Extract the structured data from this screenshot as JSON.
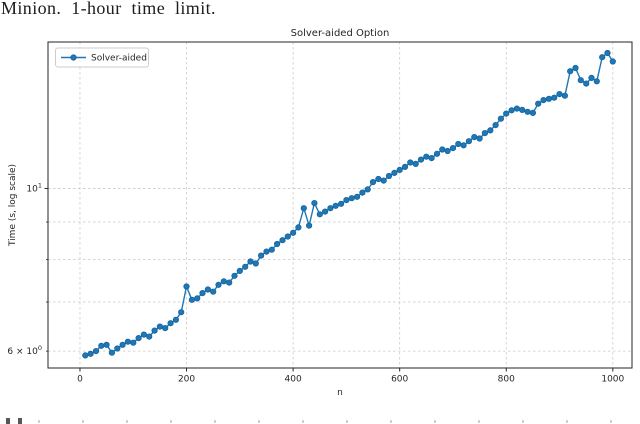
{
  "paper": {
    "caption_fragment": "Minion. 1-hour time limit."
  },
  "chart_data": {
    "type": "line",
    "title": "Solver-aided Option",
    "xlabel": "n",
    "ylabel": "Time (s, log scale)",
    "yscale": "log",
    "grid": true,
    "legend_position": "upper-left",
    "line_color": "#1f77b4",
    "marker_edge_color": "#1664a0",
    "grid_color": "#c9c9c9",
    "spine_color": "#262626",
    "xlim": [
      -60,
      1036
    ],
    "ylim": [
      5.69,
      15.84
    ],
    "x_ticks": [
      0,
      200,
      400,
      600,
      800,
      1000
    ],
    "y_major_ticks": [
      {
        "value": 10,
        "base": "10",
        "exp": "1"
      }
    ],
    "y_minor_labeled_ticks": [
      {
        "value": 6,
        "base": "6 × 10",
        "exp": "0"
      }
    ],
    "y_minor_ticks": [
      6,
      7,
      8,
      9
    ],
    "y_gridlines": [
      6,
      7,
      8,
      9,
      10
    ],
    "series": [
      {
        "name": "Solver-aided",
        "marker": "circle",
        "x": [
          10,
          20,
          30,
          40,
          50,
          60,
          70,
          80,
          90,
          100,
          110,
          120,
          130,
          140,
          150,
          160,
          170,
          180,
          190,
          200,
          210,
          220,
          230,
          240,
          250,
          260,
          270,
          280,
          290,
          300,
          310,
          320,
          330,
          340,
          350,
          360,
          370,
          380,
          390,
          400,
          410,
          420,
          430,
          440,
          450,
          460,
          470,
          480,
          490,
          500,
          510,
          520,
          530,
          540,
          550,
          560,
          570,
          580,
          590,
          600,
          610,
          620,
          630,
          640,
          650,
          660,
          670,
          680,
          690,
          700,
          710,
          720,
          730,
          740,
          750,
          760,
          770,
          780,
          790,
          800,
          810,
          820,
          830,
          840,
          850,
          860,
          870,
          880,
          890,
          900,
          910,
          920,
          930,
          940,
          950,
          960,
          970,
          980,
          990,
          1000
        ],
        "y": [
          5.92,
          5.95,
          6.0,
          6.1,
          6.12,
          5.97,
          6.05,
          6.12,
          6.18,
          6.16,
          6.25,
          6.32,
          6.28,
          6.4,
          6.48,
          6.45,
          6.55,
          6.62,
          6.78,
          7.35,
          7.05,
          7.08,
          7.2,
          7.28,
          7.23,
          7.39,
          7.47,
          7.44,
          7.6,
          7.72,
          7.82,
          7.95,
          7.9,
          8.1,
          8.2,
          8.25,
          8.4,
          8.5,
          8.6,
          8.7,
          8.85,
          9.4,
          8.9,
          9.55,
          9.22,
          9.3,
          9.4,
          9.47,
          9.53,
          9.64,
          9.7,
          9.74,
          9.87,
          9.97,
          10.2,
          10.3,
          10.25,
          10.4,
          10.5,
          10.6,
          10.7,
          10.85,
          10.8,
          10.95,
          11.05,
          11.0,
          11.15,
          11.3,
          11.25,
          11.35,
          11.5,
          11.45,
          11.6,
          11.75,
          11.7,
          11.9,
          12.0,
          12.2,
          12.45,
          12.65,
          12.78,
          12.85,
          12.8,
          12.72,
          12.68,
          13.05,
          13.2,
          13.25,
          13.3,
          13.45,
          13.38,
          14.45,
          14.6,
          14.05,
          13.9,
          14.15,
          14.0,
          15.1,
          15.3,
          14.9
        ]
      }
    ]
  }
}
